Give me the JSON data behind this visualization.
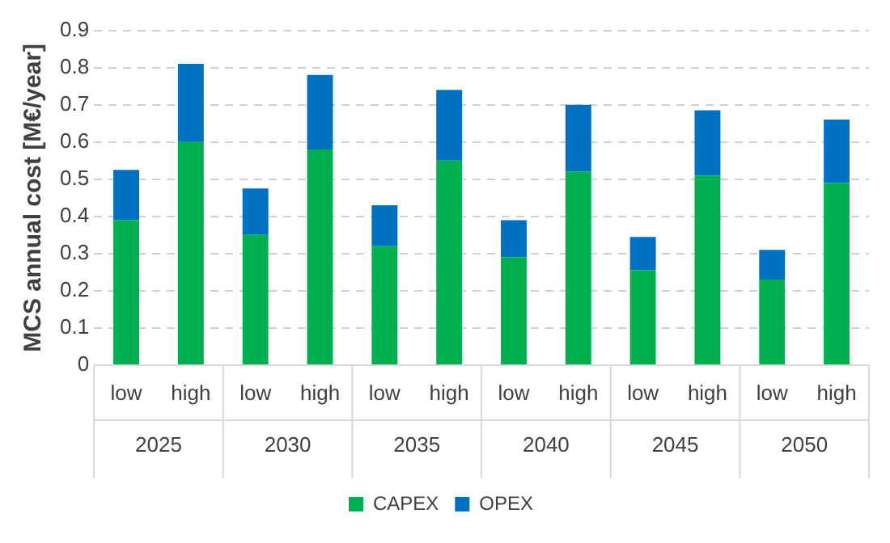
{
  "chart_data": {
    "type": "bar",
    "stacked": true,
    "ylabel": "MCS annual cost [M€/year]",
    "categories": [
      "low",
      "high",
      "low",
      "high",
      "low",
      "high",
      "low",
      "high",
      "low",
      "high",
      "low",
      "high"
    ],
    "annotations": [
      "2025",
      "2030",
      "2035",
      "2040",
      "2045",
      "2050"
    ],
    "series": [
      {
        "name": "CAPEX",
        "color": "#00b050",
        "values": [
          0.39,
          0.6,
          0.35,
          0.58,
          0.32,
          0.55,
          0.29,
          0.52,
          0.255,
          0.51,
          0.23,
          0.49
        ]
      },
      {
        "name": "OPEX",
        "color": "#0070c0",
        "values": [
          0.135,
          0.21,
          0.125,
          0.2,
          0.11,
          0.19,
          0.1,
          0.18,
          0.09,
          0.175,
          0.08,
          0.17
        ]
      }
    ],
    "ylim": [
      0,
      0.9
    ],
    "yticks": [
      0,
      0.1,
      0.2,
      0.3,
      0.4,
      0.5,
      0.6,
      0.7,
      0.8,
      0.9
    ],
    "grid": "y",
    "legend": "bottom"
  }
}
